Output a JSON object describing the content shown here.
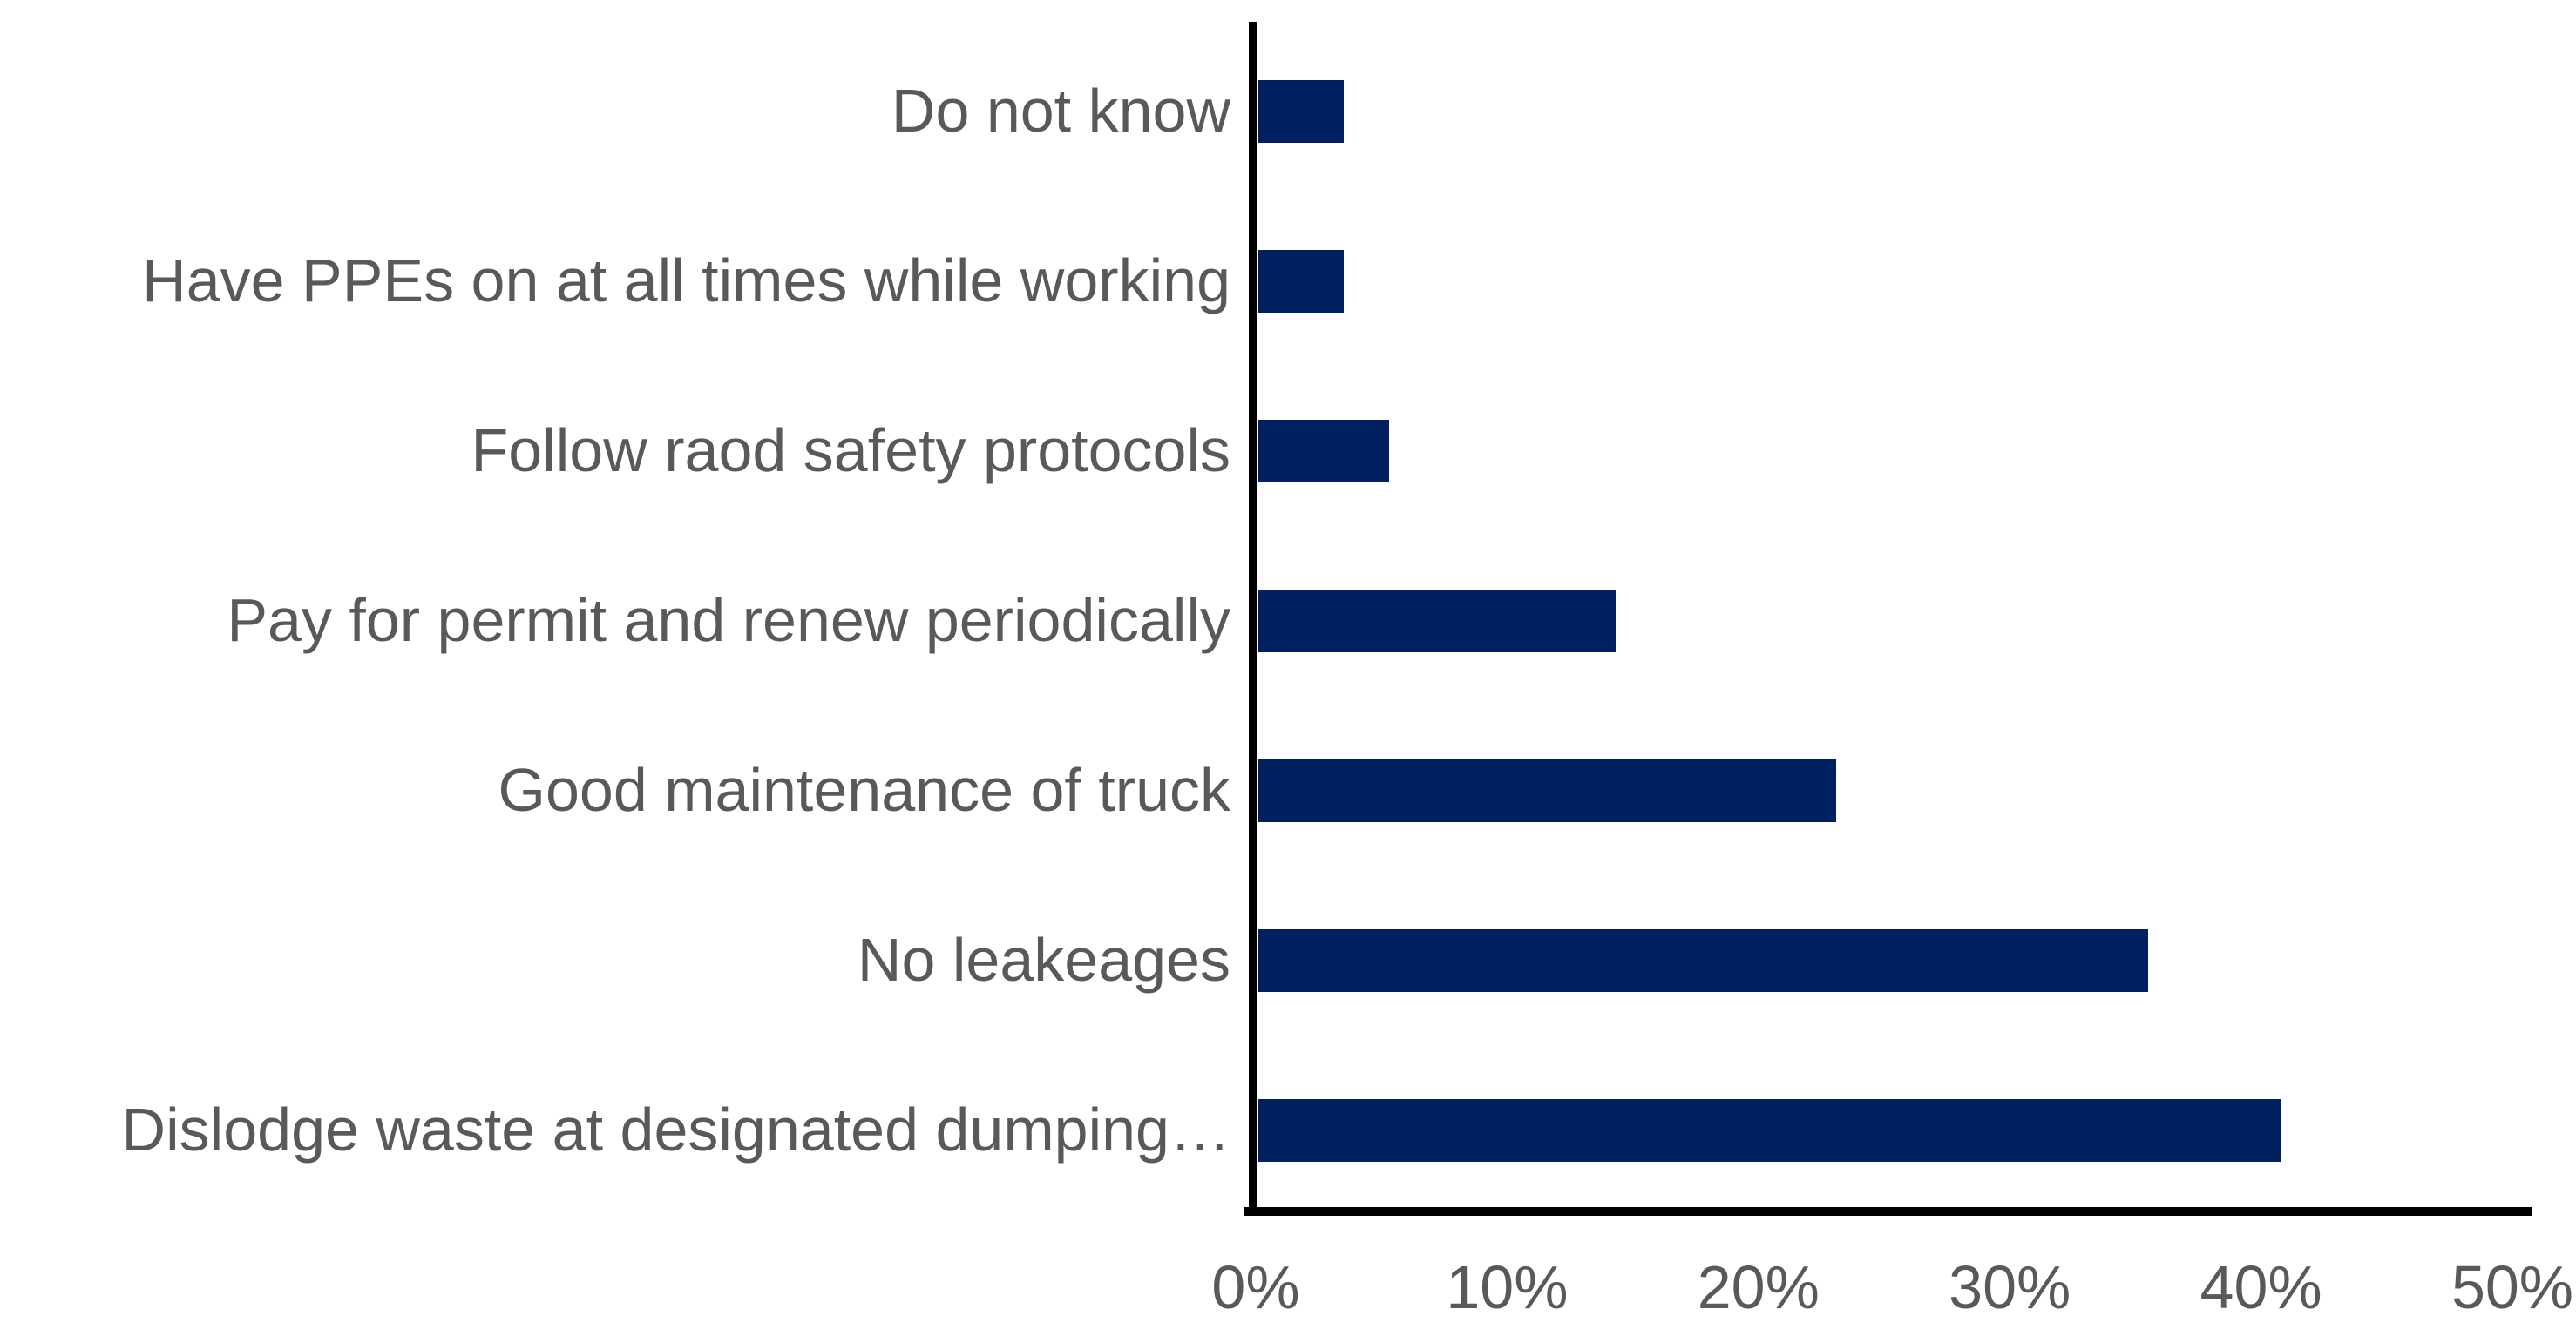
{
  "chart_data": {
    "type": "bar",
    "orientation": "horizontal",
    "title": "",
    "categories": [
      "Do not know",
      "Have PPEs on at all times while working",
      "Follow raod safety protocols",
      "Pay for permit and renew periodically",
      "Good maintenance of truck",
      "No leakeages",
      "Dislodge waste at designated dumping…"
    ],
    "values": [
      3.4,
      3.4,
      5.2,
      14.2,
      23.0,
      35.4,
      40.7
    ],
    "unit": "%",
    "xlabel": "",
    "ylabel": "",
    "xlim": [
      0,
      50
    ],
    "x_tick_values": [
      0,
      10,
      20,
      30,
      40,
      50
    ],
    "x_tick_labels": [
      "0%",
      "10%",
      "20%",
      "30%",
      "40%",
      "50%"
    ],
    "grid": false,
    "legend": false,
    "colors": {
      "bar_fill": "#002060",
      "axis_line": "#000000",
      "label_text": "#595959",
      "background": "#ffffff"
    }
  }
}
